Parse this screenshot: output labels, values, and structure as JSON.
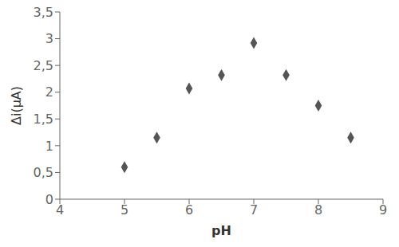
{
  "chart_data": {
    "type": "scatter",
    "x": [
      5.0,
      5.5,
      6.0,
      6.5,
      7.0,
      7.5,
      8.0,
      8.5
    ],
    "values": [
      0.6,
      1.15,
      2.07,
      2.32,
      2.92,
      2.32,
      1.75,
      1.15
    ],
    "color": "#555555",
    "marker": "diamond",
    "xlabel": "pH",
    "ylabel": "Δi(μA)",
    "xlim": [
      4,
      9
    ],
    "ylim": [
      0,
      3.5
    ],
    "xticks": [
      4,
      5,
      6,
      7,
      8,
      9
    ],
    "yticks": [
      0,
      {
        "value": 0.5,
        "label": "0,5"
      },
      1,
      {
        "value": 1.5,
        "label": "1,5"
      },
      2,
      {
        "value": 2.5,
        "label": "2,5"
      },
      3,
      {
        "value": 3.5,
        "label": "3,5"
      }
    ],
    "grid": false
  }
}
